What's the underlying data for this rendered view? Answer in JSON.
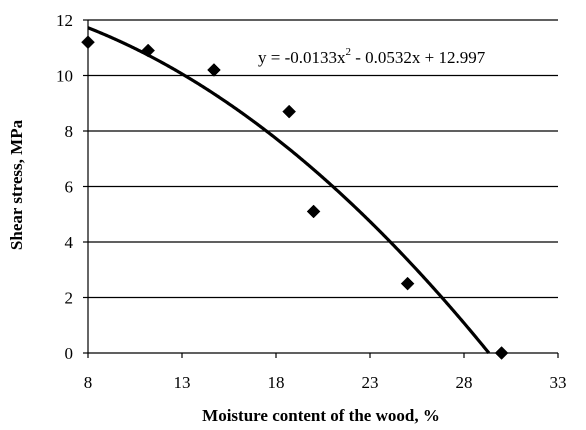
{
  "chart_data": {
    "type": "scatter",
    "title": "",
    "xlabel": "Moisture content of the wood, %",
    "ylabel": "Shear stress, MPa",
    "xlim": [
      8,
      33
    ],
    "ylim": [
      0,
      12
    ],
    "x_ticks": [
      "8",
      "13",
      "18",
      "23",
      "28",
      "33"
    ],
    "y_ticks": [
      "0",
      "2",
      "4",
      "6",
      "8",
      "10",
      "12"
    ],
    "grid": "horizontal",
    "legend": "none",
    "series": [
      {
        "marker": "diamond",
        "color": "#000000",
        "points": [
          {
            "x": 8.0,
            "y": 11.2
          },
          {
            "x": 11.2,
            "y": 10.9
          },
          {
            "x": 14.7,
            "y": 10.2
          },
          {
            "x": 18.7,
            "y": 8.7
          },
          {
            "x": 20.0,
            "y": 5.1
          },
          {
            "x": 25.0,
            "y": 2.5
          },
          {
            "x": 30.0,
            "y": 0.0
          }
        ]
      }
    ],
    "trendline": {
      "type": "polynomial",
      "coefficients": {
        "a": -0.0133,
        "b": -0.0532,
        "c": 12.997
      },
      "equation_text": "y = -0.0133x",
      "equation_sup": "2",
      "equation_rest": " - 0.0532x + 12.997",
      "color": "#000000"
    }
  }
}
